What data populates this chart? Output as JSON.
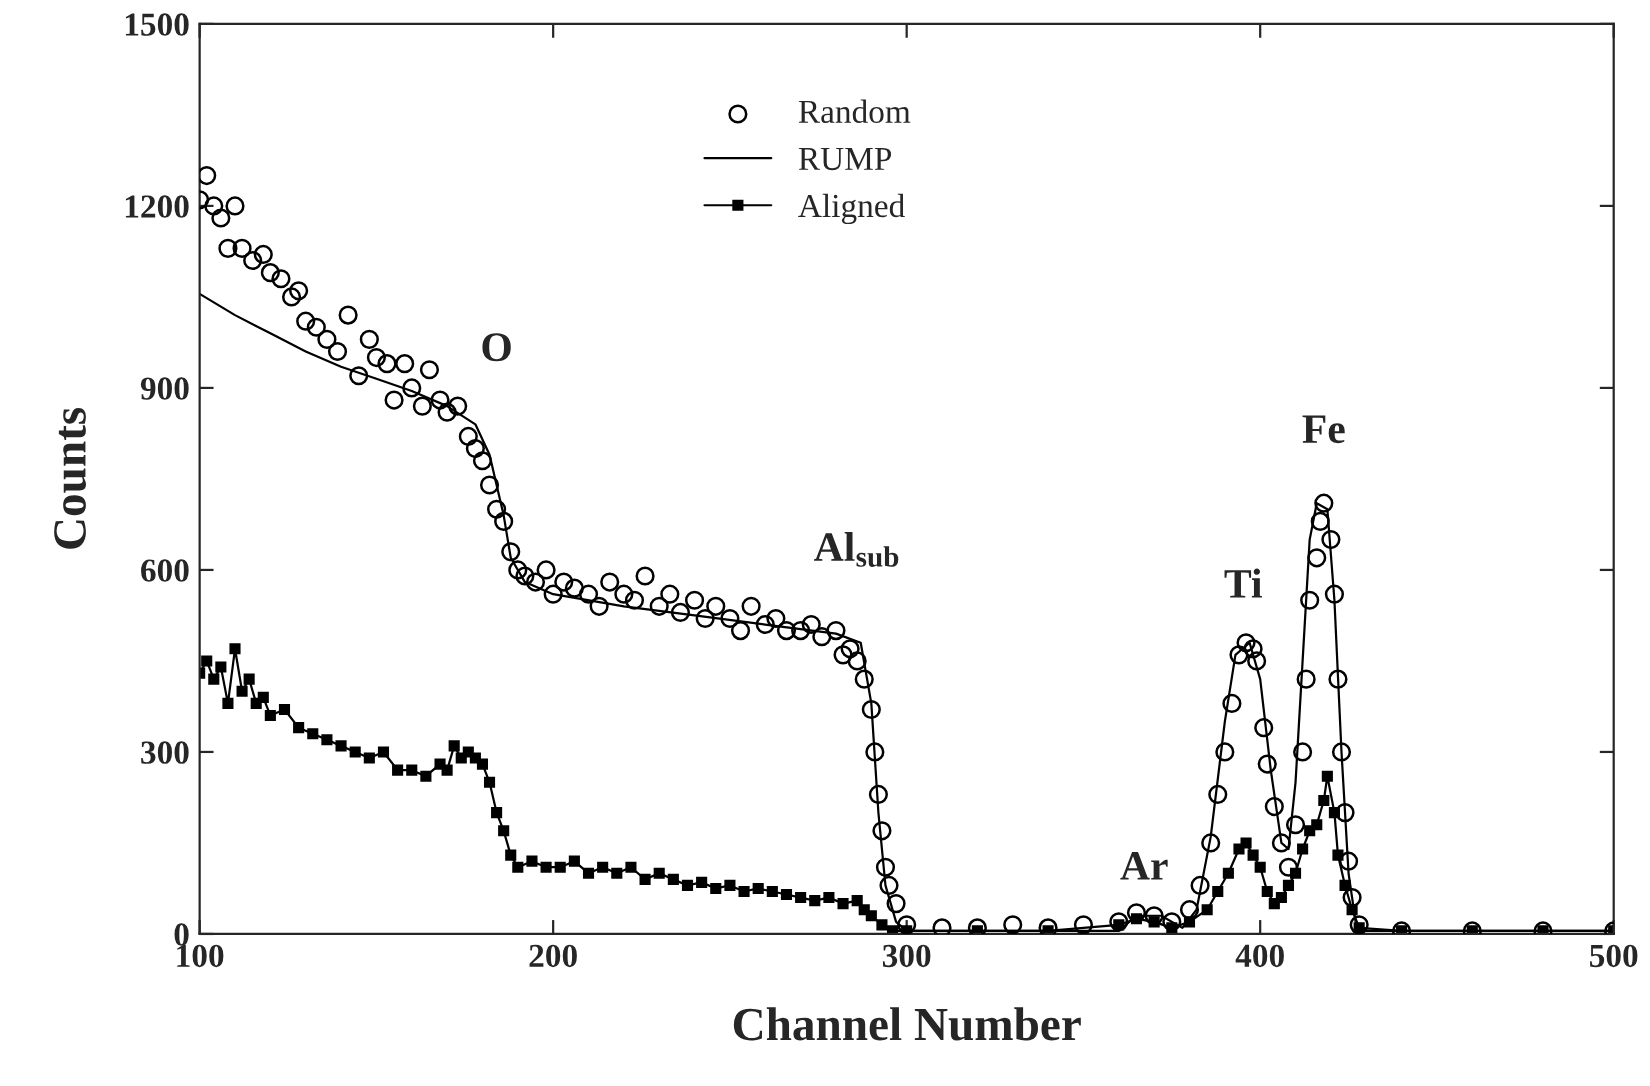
{
  "chart_data": {
    "type": "line",
    "xlabel": "Channel Number",
    "ylabel": "Counts",
    "xlim": [
      100,
      500
    ],
    "xticks": [
      100,
      200,
      300,
      400,
      500
    ],
    "ylim": [
      0,
      1500
    ],
    "yticks": [
      0,
      300,
      600,
      900,
      1200,
      1500
    ],
    "grid": false,
    "legend": "top",
    "annotations": [
      "O",
      "Al$_{sub}$",
      "Ar",
      "Ti",
      "Fe"
    ],
    "series": [
      {
        "name": "Random",
        "type": "scatter",
        "marker": "circle",
        "color": "#000000",
        "x": [
          100,
          102,
          104,
          106,
          108,
          110,
          112,
          115,
          118,
          120,
          123,
          126,
          128,
          130,
          133,
          136,
          139,
          142,
          145,
          148,
          150,
          153,
          155,
          158,
          160,
          163,
          165,
          168,
          170,
          173,
          176,
          178,
          180,
          182,
          184,
          186,
          188,
          190,
          192,
          195,
          198,
          200,
          203,
          206,
          210,
          213,
          216,
          220,
          223,
          226,
          230,
          233,
          236,
          240,
          243,
          246,
          250,
          253,
          256,
          260,
          263,
          266,
          270,
          273,
          276,
          280,
          282,
          284,
          286,
          288,
          290,
          291,
          292,
          293,
          294,
          295,
          297,
          300,
          310,
          320,
          330,
          340,
          350,
          360,
          365,
          370,
          375,
          380,
          383,
          386,
          388,
          390,
          392,
          394,
          396,
          398,
          399,
          401,
          402,
          404,
          406,
          408,
          410,
          412,
          413,
          414,
          416,
          417,
          418,
          420,
          421,
          422,
          423,
          424,
          425,
          426,
          428,
          440,
          460,
          480,
          500
        ],
        "values": [
          1210,
          1250,
          1200,
          1180,
          1130,
          1200,
          1130,
          1110,
          1120,
          1090,
          1080,
          1050,
          1060,
          1010,
          1000,
          980,
          960,
          1020,
          920,
          980,
          950,
          940,
          880,
          940,
          900,
          870,
          930,
          880,
          860,
          870,
          820,
          800,
          780,
          740,
          700,
          680,
          630,
          600,
          590,
          580,
          600,
          560,
          580,
          570,
          560,
          540,
          580,
          560,
          550,
          590,
          540,
          560,
          530,
          550,
          520,
          540,
          520,
          500,
          540,
          510,
          520,
          500,
          500,
          510,
          490,
          500,
          460,
          470,
          450,
          420,
          370,
          300,
          230,
          170,
          110,
          80,
          50,
          15,
          10,
          10,
          15,
          10,
          15,
          20,
          35,
          30,
          20,
          40,
          80,
          150,
          230,
          300,
          380,
          460,
          480,
          470,
          450,
          340,
          280,
          210,
          150,
          110,
          180,
          300,
          420,
          550,
          620,
          680,
          710,
          650,
          560,
          420,
          300,
          200,
          120,
          60,
          15,
          5,
          5,
          5,
          5
        ]
      },
      {
        "name": "RUMP",
        "marker": "none",
        "color": "#000000",
        "x": [
          100,
          110,
          120,
          130,
          140,
          150,
          160,
          170,
          178,
          182,
          186,
          188,
          192,
          200,
          220,
          240,
          260,
          280,
          287,
          290,
          292,
          294,
          297,
          300,
          360,
          365,
          372,
          378,
          382,
          386,
          390,
          393,
          397,
          400,
          403,
          406,
          408,
          410,
          412,
          414,
          416,
          419,
          421,
          423,
          425,
          427,
          430,
          500
        ],
        "values": [
          1055,
          1020,
          990,
          960,
          935,
          915,
          895,
          870,
          840,
          790,
          690,
          620,
          580,
          560,
          540,
          525,
          510,
          495,
          480,
          380,
          200,
          80,
          20,
          5,
          5,
          30,
          30,
          10,
          40,
          160,
          350,
          460,
          480,
          420,
          270,
          150,
          140,
          250,
          450,
          650,
          710,
          700,
          550,
          300,
          100,
          20,
          5,
          5
        ]
      },
      {
        "name": "Aligned",
        "marker": "square",
        "color": "#000000",
        "x": [
          100,
          102,
          104,
          106,
          108,
          110,
          112,
          114,
          116,
          118,
          120,
          124,
          128,
          132,
          136,
          140,
          144,
          148,
          152,
          156,
          160,
          164,
          168,
          170,
          172,
          174,
          176,
          178,
          180,
          182,
          184,
          186,
          188,
          190,
          194,
          198,
          202,
          206,
          210,
          214,
          218,
          222,
          226,
          230,
          234,
          238,
          242,
          246,
          250,
          254,
          258,
          262,
          266,
          270,
          274,
          278,
          282,
          286,
          288,
          290,
          293,
          296,
          300,
          320,
          340,
          360,
          365,
          370,
          375,
          380,
          385,
          388,
          391,
          394,
          396,
          398,
          400,
          402,
          404,
          406,
          408,
          410,
          412,
          414,
          416,
          418,
          419,
          421,
          422,
          424,
          426,
          428,
          440,
          460,
          480,
          500
        ],
        "values": [
          430,
          450,
          420,
          440,
          380,
          470,
          400,
          420,
          380,
          390,
          360,
          370,
          340,
          330,
          320,
          310,
          300,
          290,
          300,
          270,
          270,
          260,
          280,
          270,
          310,
          290,
          300,
          290,
          280,
          250,
          200,
          170,
          130,
          110,
          120,
          110,
          110,
          120,
          100,
          110,
          100,
          110,
          90,
          100,
          90,
          80,
          85,
          75,
          80,
          70,
          75,
          70,
          65,
          60,
          55,
          60,
          50,
          55,
          40,
          30,
          15,
          5,
          5,
          5,
          5,
          15,
          25,
          20,
          10,
          20,
          40,
          70,
          100,
          140,
          150,
          130,
          110,
          70,
          50,
          60,
          80,
          100,
          140,
          170,
          180,
          220,
          260,
          200,
          130,
          80,
          40,
          10,
          5,
          5,
          5,
          5
        ]
      }
    ]
  }
}
